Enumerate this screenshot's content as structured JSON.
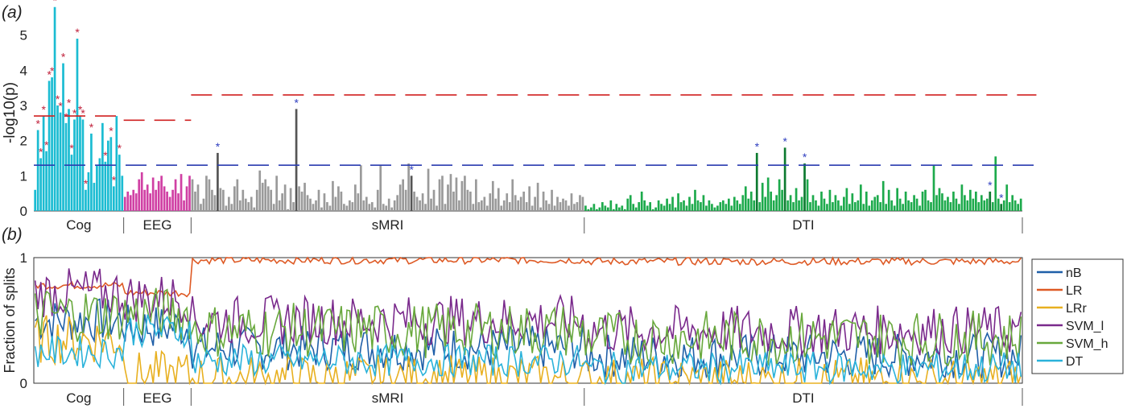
{
  "chart_data": [
    {
      "panel_label": "(a)",
      "type": "bar",
      "ylabel": "-log10(p)",
      "ylim": [
        0,
        6
      ],
      "yticks": [
        "0",
        "1",
        "2",
        "3",
        "4",
        "5"
      ],
      "groups": [
        {
          "name": "Cog",
          "color": "#1bbcd2",
          "line_color": "#ffffff",
          "values": [
            0.6,
            2.3,
            1.5,
            2.7,
            1.7,
            3.7,
            3.8,
            5.8,
            3.0,
            2.8,
            4.2,
            2.5,
            2.9,
            1.6,
            2.6,
            4.9,
            2.7,
            2.6,
            0.6,
            1.1,
            2.2,
            0.8,
            1.3,
            1.5,
            2.5,
            1.4,
            2.0,
            2.1,
            0.7,
            2.7,
            1.6,
            1.0
          ]
        },
        {
          "name": "EEG",
          "color": "#d040a4",
          "line_color": "#ffffff",
          "values": [
            0.4,
            0.55,
            0.45,
            0.6,
            0.5,
            0.9,
            1.1,
            0.6,
            0.75,
            0.5,
            0.95,
            0.6,
            0.85,
            1.0,
            0.7,
            0.55,
            0.4,
            0.6,
            0.9,
            0.5,
            1.05,
            0.3,
            0.7,
            1.0
          ]
        },
        {
          "name": "sMRI",
          "color": "#9a9a9a",
          "line_color": "#555555",
          "values": [
            0.9,
            0.55,
            0.75,
            0.2,
            0.35,
            1.0,
            0.9,
            0.6,
            0.45,
            1.65,
            0.65,
            0.6,
            0.15,
            0.4,
            0.2,
            0.7,
            0.9,
            0.3,
            0.6,
            0.35,
            0.25,
            0.4,
            0.1,
            0.6,
            1.15,
            0.8,
            0.9,
            0.7,
            0.6,
            0.2,
            1.0,
            0.3,
            0.5,
            0.75,
            0.05,
            0.65,
            0.25,
            2.9,
            0.7,
            0.55,
            0.8,
            0.45,
            0.35,
            0.2,
            0.3,
            0.6,
            0.1,
            0.5,
            0.25,
            0.15,
            0.85,
            0.4,
            0.7,
            0.55,
            0.2,
            0.15,
            0.3,
            0.25,
            0.75,
            0.5,
            1.3,
            0.3,
            0.4,
            0.2,
            0.25,
            0.1,
            0.6,
            1.3,
            0.2,
            0.15,
            0.35,
            0.1,
            0.3,
            0.45,
            0.75,
            0.9,
            0.6,
            1.35,
            1.0,
            0.55,
            0.4,
            0.3,
            0.5,
            0.2,
            1.2,
            0.35,
            0.6,
            0.15,
            0.9,
            1.0,
            0.2,
            0.75,
            1.05,
            0.55,
            0.95,
            0.3,
            0.85,
            1.0,
            0.6,
            0.55,
            0.2,
            0.9,
            0.25,
            0.3,
            0.4,
            0.15,
            0.5,
            0.85,
            0.35,
            0.65,
            0.15,
            0.3,
            0.5,
            0.25,
            0.9,
            0.45,
            0.3,
            0.4,
            0.55,
            0.25,
            0.7,
            0.15,
            0.4,
            0.8,
            0.1,
            0.55,
            0.3,
            0.2,
            0.6,
            0.15,
            0.4,
            0.25,
            0.35,
            0.3,
            0.15,
            0.5,
            0.2,
            0.25,
            0.45,
            0.4
          ]
        },
        {
          "name": "DTI",
          "color": "#1daa4c",
          "line_color": "#0d7a30",
          "values": [
            0.15,
            0.05,
            0.1,
            0.2,
            0.05,
            0.1,
            0.25,
            0.15,
            0.1,
            0.3,
            0.05,
            0.2,
            0.1,
            0.15,
            0.05,
            0.35,
            0.45,
            0.2,
            0.1,
            0.25,
            0.55,
            0.3,
            0.15,
            0.25,
            0.05,
            0.1,
            0.3,
            0.2,
            0.15,
            0.35,
            0.2,
            0.4,
            0.1,
            0.5,
            0.25,
            0.3,
            0.15,
            0.4,
            0.2,
            0.6,
            0.3,
            0.25,
            0.45,
            0.15,
            0.3,
            0.2,
            0.1,
            0.15,
            0.25,
            0.3,
            0.2,
            0.35,
            0.15,
            0.4,
            0.3,
            0.2,
            0.45,
            0.7,
            0.35,
            0.55,
            0.3,
            1.65,
            0.25,
            0.8,
            0.4,
            0.95,
            0.55,
            0.3,
            0.45,
            0.9,
            0.6,
            1.8,
            0.3,
            0.45,
            0.25,
            0.65,
            0.3,
            0.4,
            1.35,
            0.9,
            0.25,
            0.45,
            0.3,
            0.15,
            0.55,
            0.35,
            0.2,
            0.6,
            0.25,
            0.45,
            0.3,
            0.15,
            0.4,
            0.65,
            0.2,
            0.5,
            0.25,
            0.3,
            0.75,
            0.2,
            0.55,
            0.15,
            0.3,
            0.4,
            0.45,
            0.25,
            0.85,
            0.2,
            0.6,
            0.3,
            0.15,
            0.65,
            0.35,
            0.2,
            0.55,
            0.3,
            0.25,
            0.45,
            0.35,
            0.15,
            0.55,
            0.6,
            0.3,
            0.25,
            1.3,
            0.45,
            0.65,
            0.5,
            0.3,
            0.4,
            0.25,
            0.55,
            0.35,
            0.2,
            0.75,
            0.45,
            0.3,
            0.6,
            0.35,
            0.55,
            0.25,
            0.45,
            0.3,
            0.35,
            0.55,
            0.25,
            1.55,
            0.35,
            0.2,
            0.3,
            0.75,
            0.25,
            0.45,
            0.3,
            0.2,
            0.35
          ]
        }
      ],
      "significant": {
        "Cog": [
          1,
          2,
          3,
          4,
          5,
          6,
          7,
          8,
          9,
          10,
          11,
          12,
          13,
          14,
          15,
          16,
          17,
          18,
          20,
          25,
          27,
          28,
          30
        ],
        "sMRI": [
          9,
          37,
          78
        ],
        "DTI": [
          61,
          71,
          78,
          144,
          148
        ]
      },
      "threshold_lines": [
        {
          "color": "#d02020",
          "segments": [
            {
              "from_bar": 0,
              "to_bar": 31,
              "value": 2.7
            },
            {
              "from_bar": 32,
              "to_bar": 55,
              "value": 2.58
            },
            {
              "from_bar": 56,
              "to_bar": 356,
              "value": 3.3
            }
          ]
        },
        {
          "color": "#2a3cb0",
          "segments": [
            {
              "from_bar": 0,
              "to_bar": 356,
              "value": 1.3
            }
          ]
        }
      ],
      "significance_marker": "*",
      "significance_colors": {
        "Cog": "#c0223c",
        "sMRI": "#3040c0",
        "DTI": "#3040c0"
      }
    },
    {
      "panel_label": "(b)",
      "type": "line",
      "ylabel": "Fraction of splits",
      "ylim": [
        0,
        1
      ],
      "yticks": [
        "0",
        "1"
      ],
      "group_labels": [
        "Cog",
        "EEG",
        "sMRI",
        "DTI"
      ],
      "series": [
        {
          "name": "nB",
          "color": "#1f5fa8",
          "group_means": {
            "Cog": 0.5,
            "EEG": 0.45,
            "sMRI": 0.28,
            "DTI": 0.22
          },
          "amplitude": 0.18
        },
        {
          "name": "LR",
          "color": "#de5a25",
          "group_means": {
            "Cog": 0.78,
            "EEG": 0.72,
            "sMRI": 0.98,
            "DTI": 0.97
          },
          "amplitude": 0.03
        },
        {
          "name": "LRr",
          "color": "#e8b020",
          "group_means": {
            "Cog": 0.35,
            "EEG": 0.06,
            "sMRI": 0.03,
            "DTI": 0.01
          },
          "amplitude": 0.2
        },
        {
          "name": "SVM_l",
          "color": "#7a2a8c",
          "group_means": {
            "Cog": 0.72,
            "EEG": 0.68,
            "sMRI": 0.5,
            "DTI": 0.42
          },
          "amplitude": 0.2
        },
        {
          "name": "SVM_h",
          "color": "#68a83c",
          "group_means": {
            "Cog": 0.55,
            "EEG": 0.55,
            "sMRI": 0.42,
            "DTI": 0.36
          },
          "amplitude": 0.22
        },
        {
          "name": "DT",
          "color": "#2ab2da",
          "group_means": {
            "Cog": 0.25,
            "EEG": 0.42,
            "sMRI": 0.18,
            "DTI": 0.12
          },
          "amplitude": 0.13
        }
      ]
    }
  ]
}
